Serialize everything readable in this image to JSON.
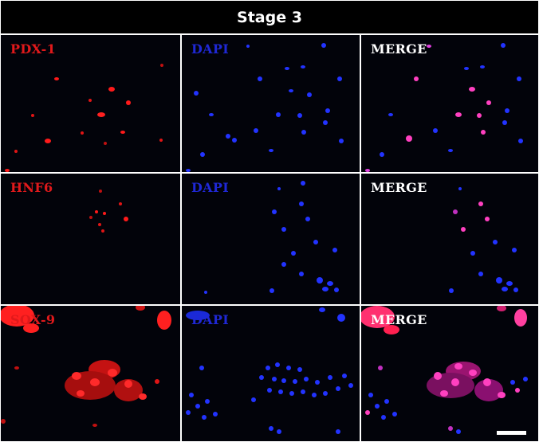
{
  "figure": {
    "title": "Stage 3",
    "rows": [
      {
        "marker": "PDX-1",
        "dapi": "DAPI",
        "merge": "MERGE"
      },
      {
        "marker": "HNF6",
        "dapi": "DAPI",
        "merge": "MERGE"
      },
      {
        "marker": "SOX-9",
        "dapi": "DAPI",
        "merge": "MERGE"
      }
    ]
  },
  "colors": {
    "marker": "#e0191b",
    "dapi": "#1f28d6",
    "merge_label": "#ffffff",
    "background": "#02030a",
    "nuclei_blue": "#2233ff",
    "cells_red": "#ff2020",
    "cells_merge": "#ff40c0"
  }
}
